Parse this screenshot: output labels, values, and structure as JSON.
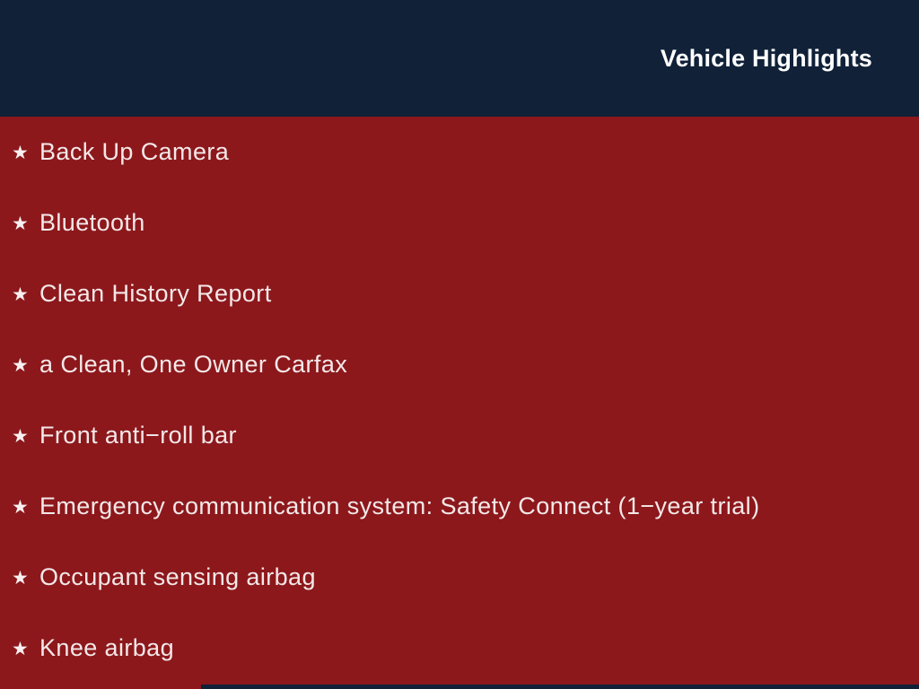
{
  "header": {
    "title": "Vehicle Highlights",
    "bg_color": "#102138",
    "text_color": "#ffffff"
  },
  "body": {
    "bg_color": "#8c181c",
    "text_color": "#f4e8e8",
    "bullet_icon": "star",
    "bullet_glyph": "★"
  },
  "highlights": [
    "Back Up Camera",
    "Bluetooth",
    "Clean History Report",
    "a Clean, One Owner Carfax",
    "Front anti−roll bar",
    "Emergency communication system: Safety Connect (1−year trial)",
    "Occupant sensing airbag",
    "Knee airbag"
  ],
  "footer": {
    "bar_color": "#102138"
  }
}
